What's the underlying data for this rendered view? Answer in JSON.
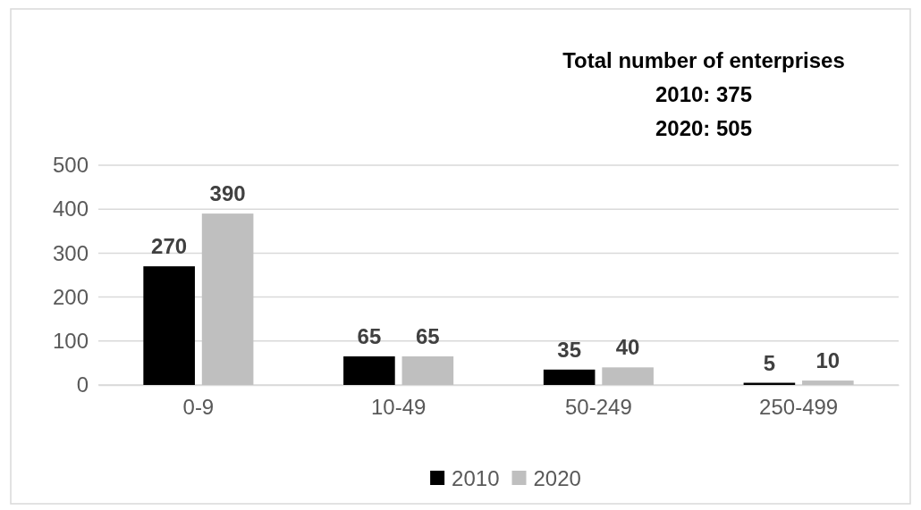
{
  "chart_data": {
    "type": "bar",
    "categories": [
      "0-9",
      "10-49",
      "50-249",
      "250-499"
    ],
    "series": [
      {
        "name": "2010",
        "color": "#000000",
        "values": [
          270,
          65,
          35,
          5
        ]
      },
      {
        "name": "2020",
        "color": "#bfbfbf",
        "values": [
          390,
          65,
          40,
          10
        ]
      }
    ],
    "ylim": [
      0,
      500
    ],
    "yticks": [
      0,
      100,
      200,
      300,
      400,
      500
    ],
    "grid": "y",
    "legend": "bottom",
    "data_labels": true,
    "annotations": [
      "Total number of enterprises",
      "2010: 375",
      "2020: 505"
    ]
  }
}
